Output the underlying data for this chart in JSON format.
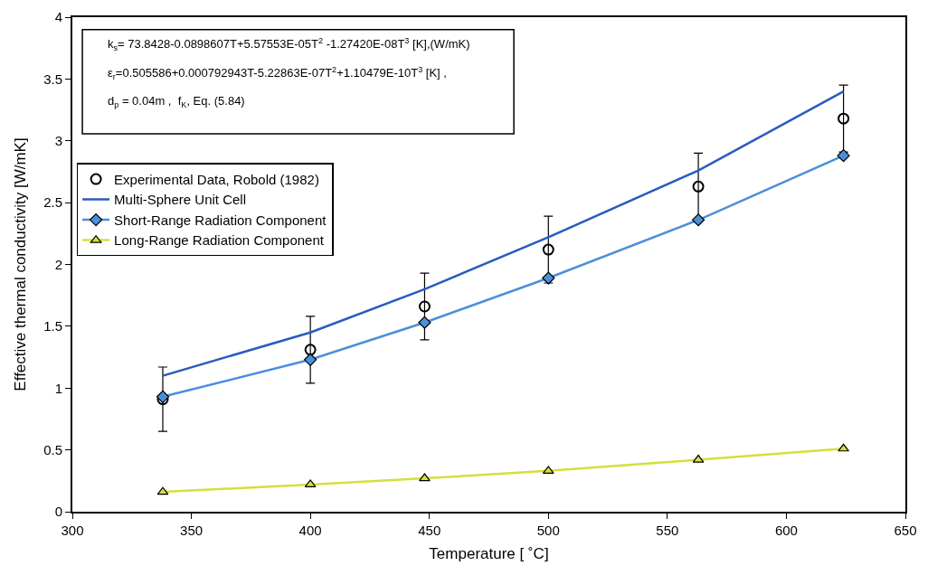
{
  "chart_data": {
    "type": "line",
    "xlabel": "Temperature [ ˚C]",
    "ylabel": "Effective thermal conductivity [W/mK]",
    "x": [
      338,
      400,
      448,
      500,
      563,
      624
    ],
    "xlim": [
      300,
      650
    ],
    "xticks": [
      300,
      350,
      400,
      450,
      500,
      550,
      600,
      650
    ],
    "ylim": [
      0,
      4
    ],
    "yticks": [
      0,
      0.5,
      1,
      1.5,
      2,
      2.5,
      3,
      3.5,
      4
    ],
    "grid": false,
    "legend": "top left",
    "series": [
      {
        "name": "Experimental Data, Robold (1982)",
        "type": "scatter",
        "marker": "circle",
        "color": "#000000",
        "values": [
          0.91,
          1.31,
          1.66,
          2.12,
          2.63,
          3.18
        ],
        "errors": [
          0.26,
          0.27,
          0.27,
          0.27,
          0.27,
          0.27
        ]
      },
      {
        "name": "Multi-Sphere Unit Cell",
        "marker": "none",
        "color": "#2a5bbf",
        "values": [
          1.1,
          1.45,
          1.8,
          2.22,
          2.76,
          3.4
        ]
      },
      {
        "name": "Short-Range Radiation Component",
        "marker": "diamond",
        "color": "#4a90d9",
        "values": [
          0.93,
          1.23,
          1.53,
          1.89,
          2.36,
          2.88
        ]
      },
      {
        "name": "Long-Range Radiation Component",
        "marker": "triangle",
        "color": "#d4e03a",
        "values": [
          0.16,
          0.22,
          0.27,
          0.33,
          0.42,
          0.51
        ]
      }
    ],
    "annotations": [
      "k$_{s}$= 73.8428-0.0898607T+5.57553E-05T$^{2}$ -1.27420E-08T$^{3}$ [K],(W/mK)",
      "ε$_{r}$=0.505586+0.000792943T-5.22863E-07T$^{2}$+1.10479E-10T$^{3}$ [K] ,",
      "d$_{p}$ = 0.04m ,  f$_{K}$, Eq. (5.84)"
    ]
  }
}
